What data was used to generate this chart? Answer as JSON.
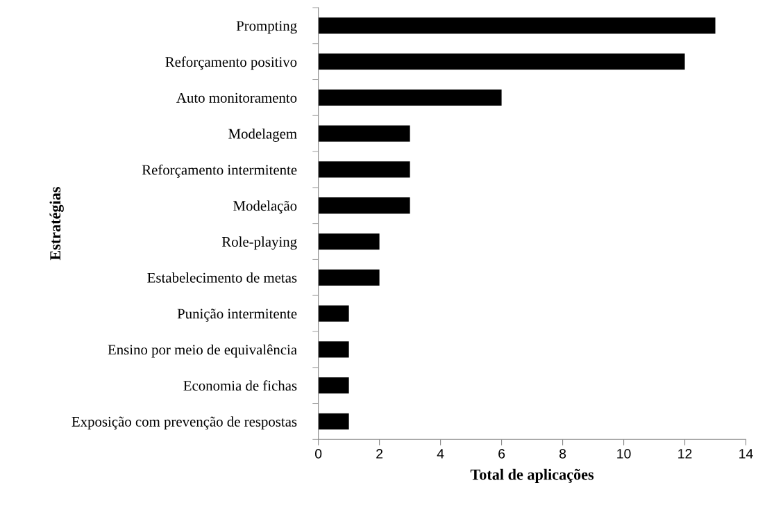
{
  "chart_data": {
    "type": "bar",
    "orientation": "horizontal",
    "xlabel": "Total de aplicações",
    "ylabel": "Estratégias",
    "categories": [
      "Prompting",
      "Reforçamento positivo",
      "Auto monitoramento",
      "Modelagem",
      "Reforçamento intermitente",
      "Modelação",
      "Role-playing",
      "Estabelecimento de metas",
      "Punição intermitente",
      "Ensino por meio de equivalência",
      "Economia de fichas",
      "Exposição com prevenção de respostas"
    ],
    "values": [
      13,
      12,
      6,
      3,
      3,
      3,
      2,
      2,
      1,
      1,
      1,
      1
    ],
    "color": "#000000",
    "xlim": [
      0,
      14
    ],
    "xticks": [
      0,
      2,
      4,
      6,
      8,
      10,
      12,
      14
    ],
    "grid": false,
    "legend": false
  }
}
